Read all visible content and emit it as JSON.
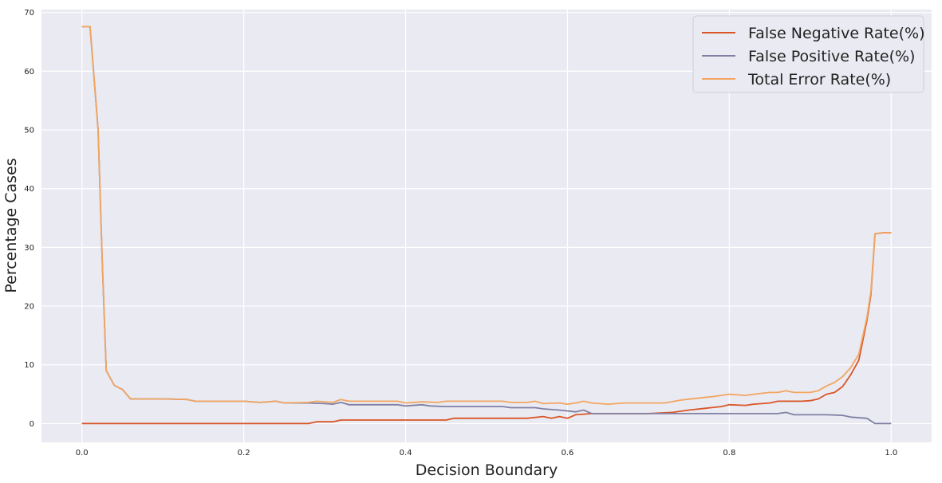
{
  "chart_data": {
    "type": "line",
    "title": "",
    "xlabel": "Decision Boundary",
    "ylabel": "Percentage Cases",
    "xlim": [
      -0.05,
      1.05
    ],
    "ylim": [
      -3.2,
      70.5
    ],
    "xticks": [
      0.0,
      0.2,
      0.4,
      0.6,
      0.8,
      1.0
    ],
    "xtick_labels": [
      "0.0",
      "0.2",
      "0.4",
      "0.6",
      "0.8",
      "1.0"
    ],
    "yticks": [
      0,
      10,
      20,
      30,
      40,
      50,
      60,
      70
    ],
    "ytick_labels": [
      "0",
      "10",
      "20",
      "30",
      "40",
      "50",
      "60",
      "70"
    ],
    "grid": true,
    "background": "#eaeaf2",
    "legend_position": "top-right",
    "series": [
      {
        "name": "False Negative Rate(%)",
        "color": "#d95527",
        "points": [
          [
            0.0,
            0
          ],
          [
            0.1,
            0
          ],
          [
            0.2,
            0
          ],
          [
            0.28,
            0
          ],
          [
            0.29,
            0.3
          ],
          [
            0.31,
            0.3
          ],
          [
            0.32,
            0.6
          ],
          [
            0.4,
            0.6
          ],
          [
            0.45,
            0.6
          ],
          [
            0.46,
            0.9
          ],
          [
            0.55,
            0.9
          ],
          [
            0.57,
            1.2
          ],
          [
            0.58,
            0.9
          ],
          [
            0.59,
            1.2
          ],
          [
            0.6,
            0.9
          ],
          [
            0.61,
            1.5
          ],
          [
            0.63,
            1.7
          ],
          [
            0.66,
            1.7
          ],
          [
            0.7,
            1.7
          ],
          [
            0.73,
            1.9
          ],
          [
            0.75,
            2.3
          ],
          [
            0.77,
            2.6
          ],
          [
            0.79,
            2.9
          ],
          [
            0.8,
            3.2
          ],
          [
            0.82,
            3.1
          ],
          [
            0.83,
            3.3
          ],
          [
            0.85,
            3.5
          ],
          [
            0.86,
            3.8
          ],
          [
            0.89,
            3.8
          ],
          [
            0.9,
            3.9
          ],
          [
            0.91,
            4.2
          ],
          [
            0.92,
            5.0
          ],
          [
            0.93,
            5.3
          ],
          [
            0.94,
            6.3
          ],
          [
            0.95,
            8.3
          ],
          [
            0.96,
            10.8
          ],
          [
            0.97,
            17.5
          ],
          [
            0.975,
            22.0
          ],
          [
            0.98,
            32.3
          ],
          [
            0.99,
            32.5
          ],
          [
            1.0,
            32.5
          ]
        ]
      },
      {
        "name": "False Positive Rate(%)",
        "color": "#7f80a4",
        "points": [
          [
            0.0,
            67.6
          ],
          [
            0.01,
            67.6
          ],
          [
            0.02,
            50.0
          ],
          [
            0.025,
            28.0
          ],
          [
            0.03,
            9.0
          ],
          [
            0.04,
            6.5
          ],
          [
            0.05,
            5.8
          ],
          [
            0.06,
            4.2
          ],
          [
            0.1,
            4.2
          ],
          [
            0.13,
            4.1
          ],
          [
            0.14,
            3.8
          ],
          [
            0.2,
            3.8
          ],
          [
            0.22,
            3.6
          ],
          [
            0.24,
            3.8
          ],
          [
            0.25,
            3.5
          ],
          [
            0.28,
            3.5
          ],
          [
            0.3,
            3.4
          ],
          [
            0.31,
            3.3
          ],
          [
            0.32,
            3.6
          ],
          [
            0.33,
            3.2
          ],
          [
            0.39,
            3.2
          ],
          [
            0.4,
            3.0
          ],
          [
            0.42,
            3.2
          ],
          [
            0.43,
            3.0
          ],
          [
            0.45,
            2.9
          ],
          [
            0.52,
            2.9
          ],
          [
            0.53,
            2.7
          ],
          [
            0.56,
            2.7
          ],
          [
            0.57,
            2.5
          ],
          [
            0.59,
            2.3
          ],
          [
            0.61,
            2.0
          ],
          [
            0.62,
            2.3
          ],
          [
            0.63,
            1.7
          ],
          [
            0.7,
            1.7
          ],
          [
            0.8,
            1.7
          ],
          [
            0.86,
            1.7
          ],
          [
            0.87,
            1.9
          ],
          [
            0.88,
            1.5
          ],
          [
            0.92,
            1.5
          ],
          [
            0.94,
            1.4
          ],
          [
            0.95,
            1.1
          ],
          [
            0.97,
            0.9
          ],
          [
            0.98,
            0.0
          ],
          [
            1.0,
            0.0
          ]
        ]
      },
      {
        "name": "Total Error Rate(%)",
        "color": "#f2a560",
        "points": [
          [
            0.0,
            67.6
          ],
          [
            0.01,
            67.6
          ],
          [
            0.02,
            50.0
          ],
          [
            0.025,
            28.0
          ],
          [
            0.03,
            9.0
          ],
          [
            0.04,
            6.5
          ],
          [
            0.05,
            5.8
          ],
          [
            0.06,
            4.2
          ],
          [
            0.1,
            4.2
          ],
          [
            0.13,
            4.1
          ],
          [
            0.14,
            3.8
          ],
          [
            0.2,
            3.8
          ],
          [
            0.22,
            3.6
          ],
          [
            0.24,
            3.8
          ],
          [
            0.25,
            3.5
          ],
          [
            0.28,
            3.6
          ],
          [
            0.29,
            3.8
          ],
          [
            0.31,
            3.6
          ],
          [
            0.32,
            4.1
          ],
          [
            0.33,
            3.8
          ],
          [
            0.39,
            3.8
          ],
          [
            0.4,
            3.5
          ],
          [
            0.42,
            3.7
          ],
          [
            0.44,
            3.6
          ],
          [
            0.45,
            3.8
          ],
          [
            0.52,
            3.8
          ],
          [
            0.53,
            3.6
          ],
          [
            0.55,
            3.6
          ],
          [
            0.56,
            3.8
          ],
          [
            0.57,
            3.4
          ],
          [
            0.59,
            3.5
          ],
          [
            0.6,
            3.3
          ],
          [
            0.61,
            3.5
          ],
          [
            0.62,
            3.8
          ],
          [
            0.63,
            3.5
          ],
          [
            0.65,
            3.3
          ],
          [
            0.67,
            3.5
          ],
          [
            0.72,
            3.5
          ],
          [
            0.74,
            4.0
          ],
          [
            0.76,
            4.3
          ],
          [
            0.78,
            4.6
          ],
          [
            0.8,
            5.0
          ],
          [
            0.82,
            4.8
          ],
          [
            0.83,
            5.0
          ],
          [
            0.85,
            5.3
          ],
          [
            0.86,
            5.3
          ],
          [
            0.87,
            5.6
          ],
          [
            0.88,
            5.3
          ],
          [
            0.9,
            5.3
          ],
          [
            0.91,
            5.6
          ],
          [
            0.92,
            6.4
          ],
          [
            0.93,
            7.0
          ],
          [
            0.94,
            8.0
          ],
          [
            0.95,
            9.5
          ],
          [
            0.96,
            11.8
          ],
          [
            0.97,
            18.0
          ],
          [
            0.975,
            22.5
          ],
          [
            0.98,
            32.3
          ],
          [
            0.99,
            32.5
          ],
          [
            1.0,
            32.5
          ]
        ]
      }
    ]
  }
}
